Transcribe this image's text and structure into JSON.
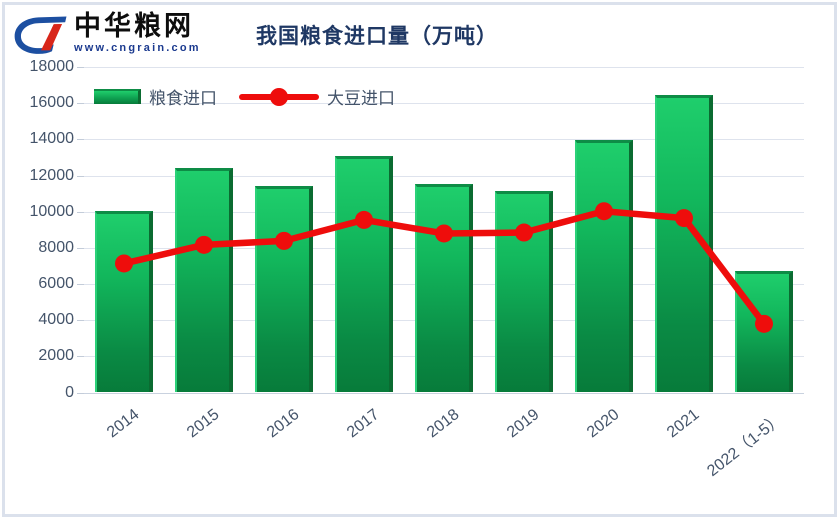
{
  "logo": {
    "brand": "中华粮网",
    "website": "www.cngrain.com"
  },
  "title": "我国粮食进口量（万吨）",
  "legend": {
    "items": [
      {
        "label": "粮食进口",
        "marker": "bar"
      },
      {
        "label": "大豆进口",
        "marker": "line-dot"
      }
    ]
  },
  "colors": {
    "bar_top": "#1fce6c",
    "bar_bottom": "#077b3a",
    "bar_edge_dark": "#0b6b31",
    "line_red": "#ee0d0c",
    "title_navy": "#1f3864",
    "axis_text": "#44546a",
    "gridline": "#dee3ed",
    "zero_line": "#c9d2df",
    "tick": "#c3ccd9",
    "frame": "#dbe1ec",
    "logo_blue": "#1c4fa1",
    "logo_red": "#d8261a"
  },
  "chart_data": {
    "type": "bar",
    "title": "我国粮食进口量（万吨）",
    "categories": [
      "2014",
      "2015",
      "2016",
      "2017",
      "2018",
      "2019",
      "2020",
      "2021",
      "2022（1-5）"
    ],
    "series": [
      {
        "name": "粮食进口",
        "type": "bar",
        "values": [
          10050,
          12450,
          11450,
          13100,
          11550,
          11150,
          13950,
          16450,
          6700
        ]
      },
      {
        "name": "大豆进口",
        "type": "line",
        "values": [
          7140,
          8170,
          8390,
          9550,
          8800,
          8850,
          10030,
          9650,
          3800
        ]
      }
    ],
    "xlabel": "",
    "ylabel": "",
    "ylim": [
      0,
      18000
    ],
    "ytick_step": 2000,
    "grid": true,
    "legend_position": "top-left-inside",
    "x_label_rotation_deg": -38
  }
}
